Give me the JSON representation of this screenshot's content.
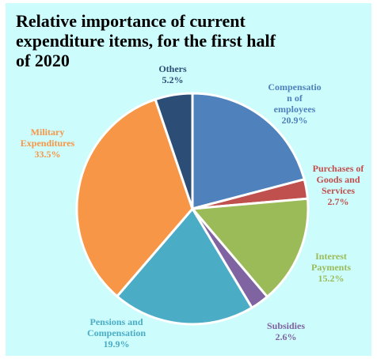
{
  "colors": {
    "background": "#ccfcfc",
    "slice_border": "#ffffff"
  },
  "chart_data": {
    "type": "pie",
    "title": "Relative importance of current expenditure items, for the first half of 2020",
    "title_lines": [
      "Relative importance of current",
      "expenditure items, for the first half",
      "of 2020"
    ],
    "slices": [
      {
        "label": "Compensation of employees",
        "label_lines": [
          "Compensatio",
          "n of",
          "employees"
        ],
        "value": 20.9,
        "value_text": "20.9%",
        "color": "#4f81bd"
      },
      {
        "label": "Purchases of Goods and Services",
        "label_lines": [
          "Purchases of",
          "Goods and",
          "Services"
        ],
        "value": 2.7,
        "value_text": "2.7%",
        "color": "#c0504d"
      },
      {
        "label": "Interest Payments",
        "label_lines": [
          "Interest",
          "Payments"
        ],
        "value": 15.2,
        "value_text": "15.2%",
        "color": "#9bbb59"
      },
      {
        "label": "Subsidies",
        "label_lines": [
          "Subsidies"
        ],
        "value": 2.6,
        "value_text": "2.6%",
        "color": "#8064a2"
      },
      {
        "label": "Pensions and Compensation",
        "label_lines": [
          "Pensions and",
          "Compensation"
        ],
        "value": 19.9,
        "value_text": "19.9%",
        "color": "#4bacc6"
      },
      {
        "label": "Military Expenditures",
        "label_lines": [
          "Military",
          "Expenditures"
        ],
        "value": 33.5,
        "value_text": "33.5%",
        "color": "#f79646"
      },
      {
        "label": "Others",
        "label_lines": [
          "Others"
        ],
        "value": 5.2,
        "value_text": "5.2%",
        "color": "#2c4d75"
      }
    ]
  }
}
